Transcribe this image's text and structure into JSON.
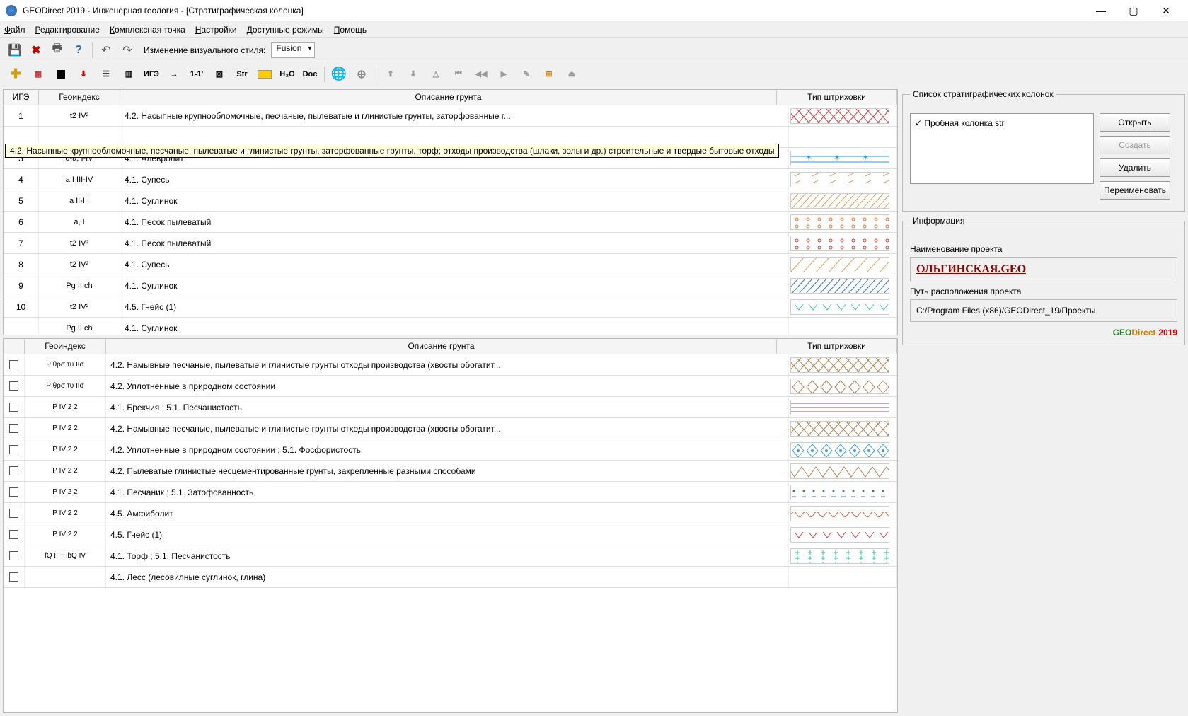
{
  "window": {
    "title": "GEODirect 2019 - Инженерная геология - [Стратиграфическая колонка]"
  },
  "menu": {
    "file": "Файл",
    "edit": "Редактирование",
    "complex": "Комплексная точка",
    "settings": "Настройки",
    "modes": "Доступные режимы",
    "help": "Помощь"
  },
  "toolbar": {
    "style_label": "Изменение визуального стиля:",
    "style_value": "Fusion"
  },
  "tooltip_text": "4.2. Насыпные крупнообломочные, песчаные, пылеватые и глинистые грунты, заторфованные грунты, торф; отходы производства (шлаки, золы и др.) строительные и твердые бытовые отходы",
  "tableTop": {
    "headers": {
      "ige": "ИГЭ",
      "geo": "Геоиндекс",
      "desc": "Описание грунта",
      "hatch": "Тип штриховки"
    },
    "cols": {
      "ige": 50,
      "geo": 115,
      "desc": 580,
      "hatch": 150
    },
    "rows": [
      {
        "ige": "1",
        "geo": "t2 IV²",
        "desc": "4.2. Насыпные крупнообломочные, песчаные, пылеватые и глинистые грунты, заторфованные г...",
        "color": "#d04040",
        "pattern": "cross"
      },
      {
        "ige": "",
        "geo": "",
        "desc": "",
        "color": "",
        "pattern": ""
      },
      {
        "ige": "3",
        "geo": "d-a,  I-IV",
        "desc": "4.1. Алевролит",
        "color": "#1ea0e0",
        "pattern": "dash-star"
      },
      {
        "ige": "4",
        "geo": "a,I   III-IV",
        "desc": "4.1. Супесь",
        "color": "#e0a060",
        "pattern": "sparse-dash"
      },
      {
        "ige": "5",
        "geo": "a    II-III",
        "desc": "4.1. Суглинок",
        "color": "#e0a060",
        "pattern": "diag"
      },
      {
        "ige": "6",
        "geo": "a,    I",
        "desc": "4.1. Песок пылеватый",
        "color": "#e07030",
        "pattern": "dots"
      },
      {
        "ige": "7",
        "geo": "t2 IV²",
        "desc": "4.1. Песок пылеватый",
        "color": "#d04040",
        "pattern": "dots-red"
      },
      {
        "ige": "8",
        "geo": "t2 IV²",
        "desc": "4.1. Супесь",
        "color": "#e0a060",
        "pattern": "diag-sparse"
      },
      {
        "ige": "9",
        "geo": "Pg   IIIch",
        "desc": "4.1. Суглинок",
        "color": "#3070d0",
        "pattern": "diag"
      },
      {
        "ige": "10",
        "geo": "t2 IV²",
        "desc": "4.5. Гнейс (1)",
        "color": "#40c0c0",
        "pattern": "vee"
      },
      {
        "ige": "",
        "geo": "Pg   IIIch",
        "desc": "4.1. Суглинок",
        "color": "",
        "pattern": ""
      }
    ]
  },
  "tableBot": {
    "headers": {
      "cb": "",
      "geo": "Геоиндекс",
      "desc": "Описание грунта",
      "hatch": "Тип штриховки"
    },
    "cols": {
      "cb": 30,
      "geo": 115,
      "desc": 600,
      "hatch": 150
    },
    "rows": [
      {
        "geo": "P   θρσ τυ ΙΙσ",
        "desc": "4.2. Намывные песчаные, пылеватые и глинистые грунты отходы производства (хвосты обогатит...",
        "color": "#b08050",
        "pattern": "cross"
      },
      {
        "geo": "P   θρσ τυ ΙΙσ",
        "desc": "4.2. Уплотненные в природном состоянии",
        "color": "#b08050",
        "pattern": "diamond"
      },
      {
        "geo": "P   IV  2  2",
        "desc": "4.1. Брекчия ; 5.1. Песчанистость",
        "color": "#7050c0",
        "pattern": "bars"
      },
      {
        "geo": "P   IV  2  2",
        "desc": "4.2. Намывные песчаные, пылеватые и глинистые грунты отходы производства (хвосты обогатит...",
        "color": "#b08050",
        "pattern": "cross"
      },
      {
        "geo": "P   IV  2  2",
        "desc": "4.2. Уплотненные в природном состоянии ; 5.1. Фосфористость",
        "color": "#40a0e0",
        "pattern": "diamond-dot"
      },
      {
        "geo": "P   IV  2  2",
        "desc": "4.2. Пылеватые глинистые несцементированные грунты, закрепленные разными способами",
        "color": "#b08050",
        "pattern": "zigzag"
      },
      {
        "geo": "P   IV  2  2",
        "desc": "4.1. Песчаник ; 5.1. Затофованность",
        "color": "#3070d0",
        "pattern": "dot-dash"
      },
      {
        "geo": "P   IV  2  2",
        "desc": "4.5. Амфиболит",
        "color": "#d06030",
        "pattern": "wave"
      },
      {
        "geo": "P   IV  2  2",
        "desc": "4.5. Гнейс (1)",
        "color": "#d04040",
        "pattern": "vee"
      },
      {
        "geo": "fQ II + lbQ IV",
        "desc": "4.1. Торф ; 5.1. Песчанистость",
        "color": "#30c090",
        "pattern": "dash-grid"
      },
      {
        "geo": "",
        "desc": "4.1. Лесс (лесовилные суглинок, глина)",
        "color": "",
        "pattern": ""
      }
    ]
  },
  "side": {
    "list_title": "Список стратиграфических колонок",
    "list_item": "Пробная колонка str",
    "btn_open": "Открыть",
    "btn_create": "Создать",
    "btn_delete": "Удалить",
    "btn_rename": "Переименовать",
    "info_title": "Информация",
    "proj_label": "Наименование проекта",
    "proj_name": "ОЛЬГИНСКАЯ.GEO",
    "path_label": "Путь расположения проекта",
    "path_value": "C:/Program Files (x86)/GEODirect_19/Проекты"
  },
  "colors": {
    "titlebar_bg": "#ffffff",
    "panel_bg": "#f0f0f0",
    "border": "#bbbbbb",
    "tooltip_bg": "#ffffe1"
  }
}
